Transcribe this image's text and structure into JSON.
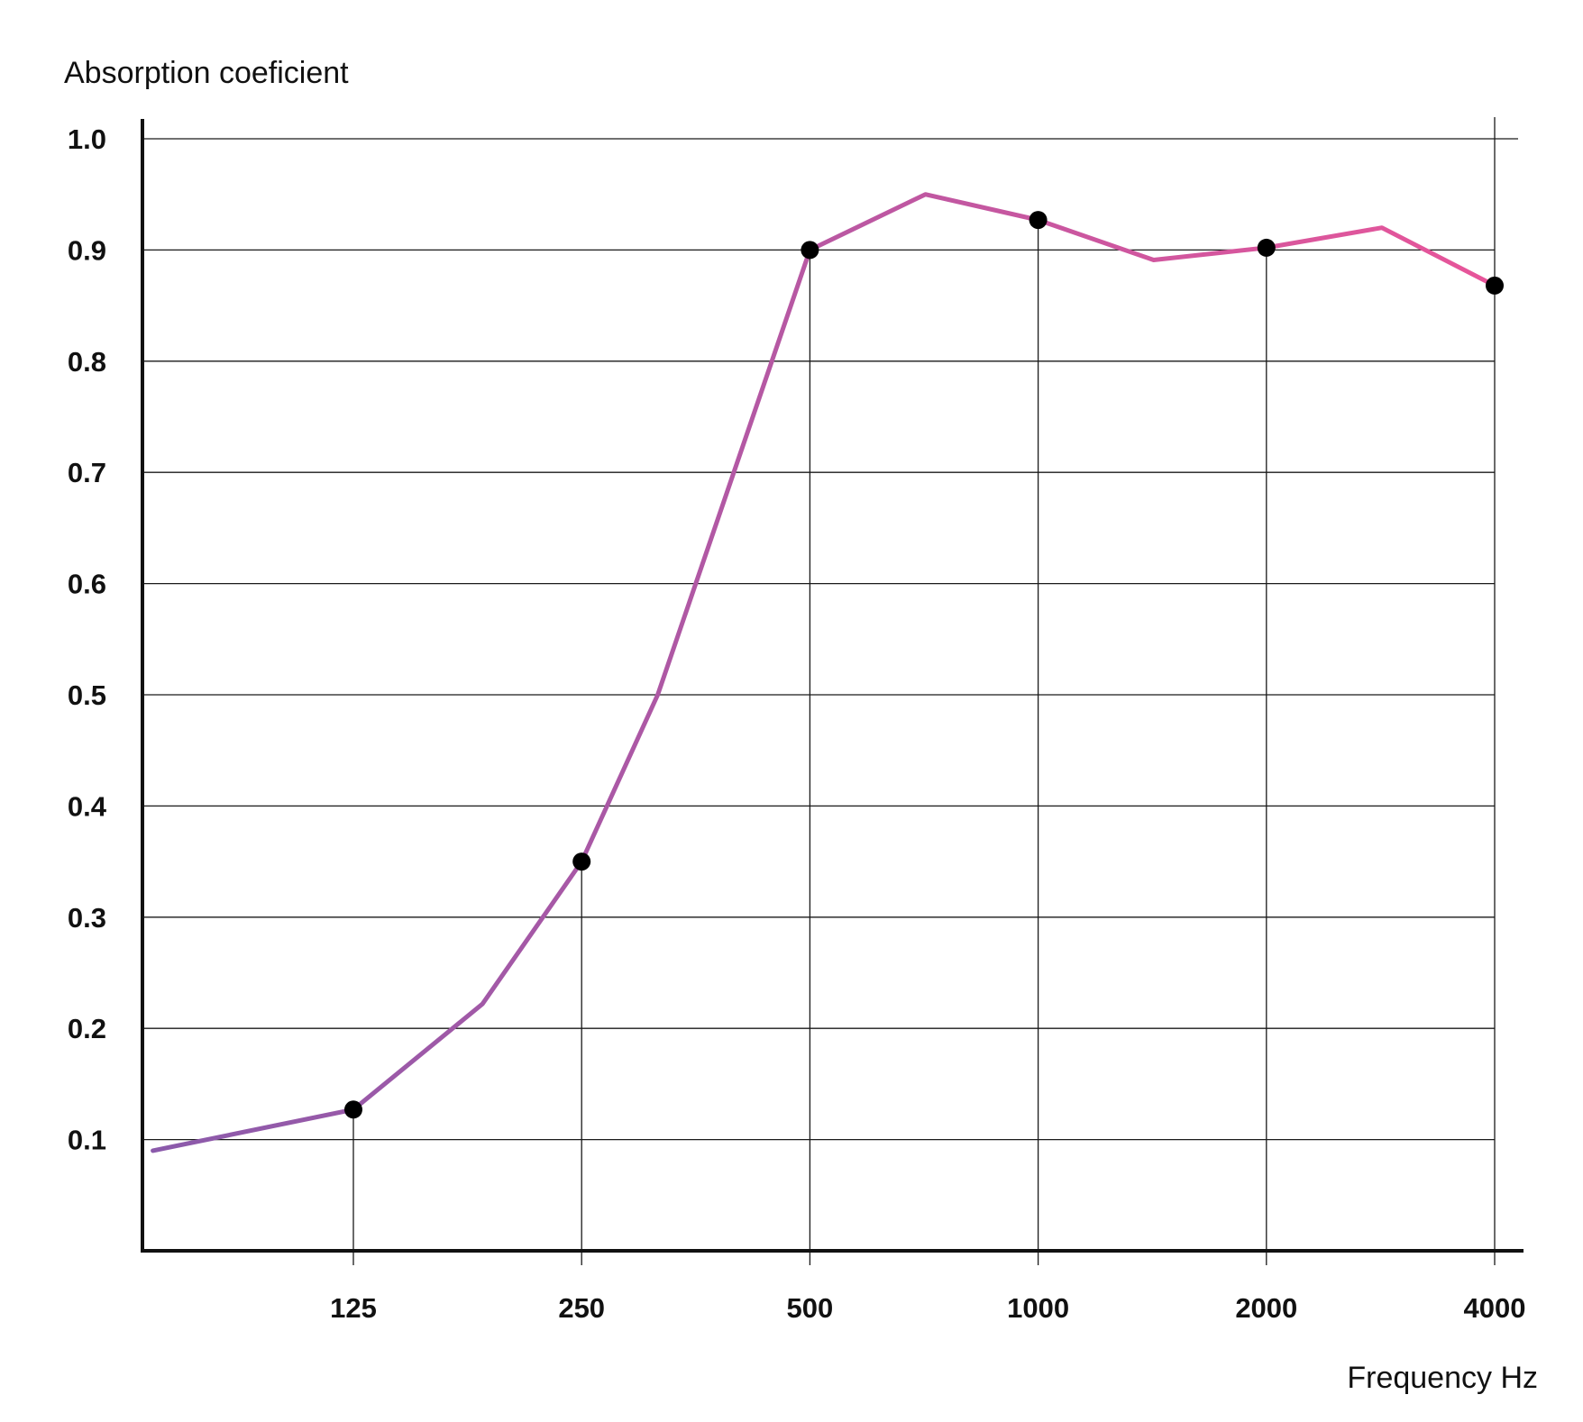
{
  "chart_data": {
    "type": "line",
    "ylabel": "Absorption coeficient",
    "xlabel": "Frequency Hz",
    "x_scale": "log",
    "xlim": [
      68,
      4150
    ],
    "ylim": [
      0,
      1.0
    ],
    "y_ticks": [
      0.1,
      0.2,
      0.3,
      0.4,
      0.5,
      0.6,
      0.7,
      0.8,
      0.9,
      1.0
    ],
    "y_tick_labels": [
      "0.1",
      "0.2",
      "0.3",
      "0.4",
      "0.5",
      "0.6",
      "0.7",
      "0.8",
      "0.9",
      "1.0"
    ],
    "x_ticks": [
      125,
      250,
      500,
      1000,
      2000,
      4000
    ],
    "x_tick_labels": [
      "125",
      "250",
      "500",
      "1000",
      "2000",
      "4000"
    ],
    "grid": true,
    "series": [
      {
        "line_points": [
          {
            "x": 68,
            "y": 0.09
          },
          {
            "x": 125,
            "y": 0.127
          },
          {
            "x": 185,
            "y": 0.222
          },
          {
            "x": 250,
            "y": 0.35
          },
          {
            "x": 315,
            "y": 0.5
          },
          {
            "x": 500,
            "y": 0.9
          },
          {
            "x": 710,
            "y": 0.95
          },
          {
            "x": 1000,
            "y": 0.927
          },
          {
            "x": 1420,
            "y": 0.891
          },
          {
            "x": 2000,
            "y": 0.902
          },
          {
            "x": 2840,
            "y": 0.92
          },
          {
            "x": 4000,
            "y": 0.868
          }
        ],
        "markers": [
          {
            "x": 125,
            "y": 0.127
          },
          {
            "x": 250,
            "y": 0.35
          },
          {
            "x": 500,
            "y": 0.9
          },
          {
            "x": 1000,
            "y": 0.927
          },
          {
            "x": 2000,
            "y": 0.902
          },
          {
            "x": 4000,
            "y": 0.868
          }
        ],
        "color_start": "#8a5aab",
        "color_end": "#e8559a"
      }
    ]
  }
}
